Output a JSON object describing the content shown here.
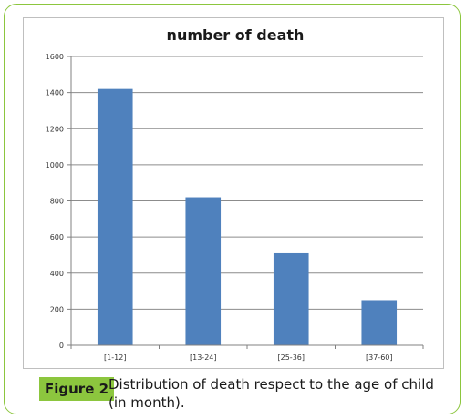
{
  "chart_data": {
    "type": "bar",
    "title": "number of death",
    "xlabel": "",
    "ylabel": "",
    "categories": [
      "[1-12]",
      "[13-24]",
      "[25-36]",
      "[37-60]"
    ],
    "values": [
      1420,
      820,
      510,
      250
    ],
    "ylim": [
      0,
      1600
    ],
    "yticks": [
      0,
      200,
      400,
      600,
      800,
      1000,
      1200,
      1400,
      1600
    ],
    "grid": true,
    "legend": "none",
    "bar_color": "#4f81bd",
    "grid_color": "#8c8c8c"
  },
  "caption": {
    "label": "Figure 2",
    "text": "Distribution of death respect to the age of child (in month)."
  },
  "colors": {
    "frame": "#8cc63e",
    "label_bg": "#8cc63e"
  }
}
